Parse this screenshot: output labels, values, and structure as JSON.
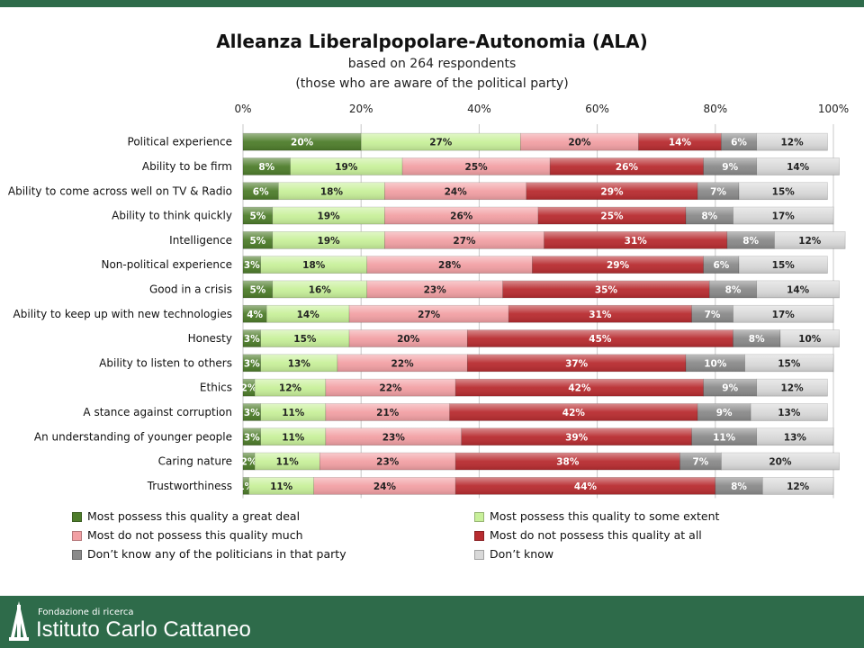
{
  "chart_data": {
    "type": "bar",
    "orientation": "horizontal",
    "stacked": "percent",
    "title": "Alleanza Liberalpopolare-Autonomia (ALA)",
    "subtitle_lines": [
      "based on 264 respondents",
      "(those who are aware of the political party)"
    ],
    "xlim": [
      0,
      100
    ],
    "x_ticks": [
      "0%",
      "20%",
      "40%",
      "60%",
      "80%",
      "100%"
    ],
    "grid": true,
    "legend_position": "bottom",
    "categories": [
      "Political experience",
      "Ability to be firm",
      "Ability to come across well on TV & Radio",
      "Ability to think quickly",
      "Intelligence",
      "Non-political experience",
      "Good in a crisis",
      "Ability to keep up with new technologies",
      "Honesty",
      "Ability to listen to others",
      "Ethics",
      "A stance against corruption",
      "An understanding of younger people",
      "Caring nature",
      "Trustworthiness"
    ],
    "series": [
      {
        "name": "Most possess this quality a great deal",
        "color": "#4e7d2b",
        "values": [
          20,
          8,
          6,
          5,
          5,
          3,
          5,
          4,
          3,
          3,
          2,
          3,
          3,
          2,
          1
        ]
      },
      {
        "name": "Most possess this quality to some extent",
        "color": "#c8f09a",
        "values": [
          27,
          19,
          18,
          19,
          19,
          18,
          16,
          14,
          15,
          13,
          12,
          11,
          11,
          11,
          11
        ]
      },
      {
        "name": "Most do not possess this quality much",
        "color": "#f2a0a4",
        "values": [
          20,
          25,
          24,
          26,
          27,
          28,
          23,
          27,
          20,
          22,
          22,
          21,
          23,
          23,
          24
        ]
      },
      {
        "name": "Most do not possess this quality at all",
        "color": "#b82c30",
        "values": [
          14,
          26,
          29,
          25,
          31,
          29,
          35,
          31,
          45,
          37,
          42,
          42,
          39,
          38,
          44
        ]
      },
      {
        "name": "Don’t know any of the politicians in that party",
        "color": "#8a8a8a",
        "values": [
          6,
          9,
          7,
          8,
          8,
          6,
          8,
          7,
          8,
          10,
          9,
          9,
          11,
          7,
          8
        ]
      },
      {
        "name": "Don’t know",
        "color": "#d9d9d9",
        "values": [
          12,
          14,
          15,
          17,
          12,
          15,
          14,
          17,
          10,
          15,
          12,
          13,
          13,
          20,
          12
        ]
      }
    ]
  },
  "footer": {
    "foundation_label": "Fondazione di ricerca",
    "institute_name": "Istituto Carlo Cattaneo"
  }
}
